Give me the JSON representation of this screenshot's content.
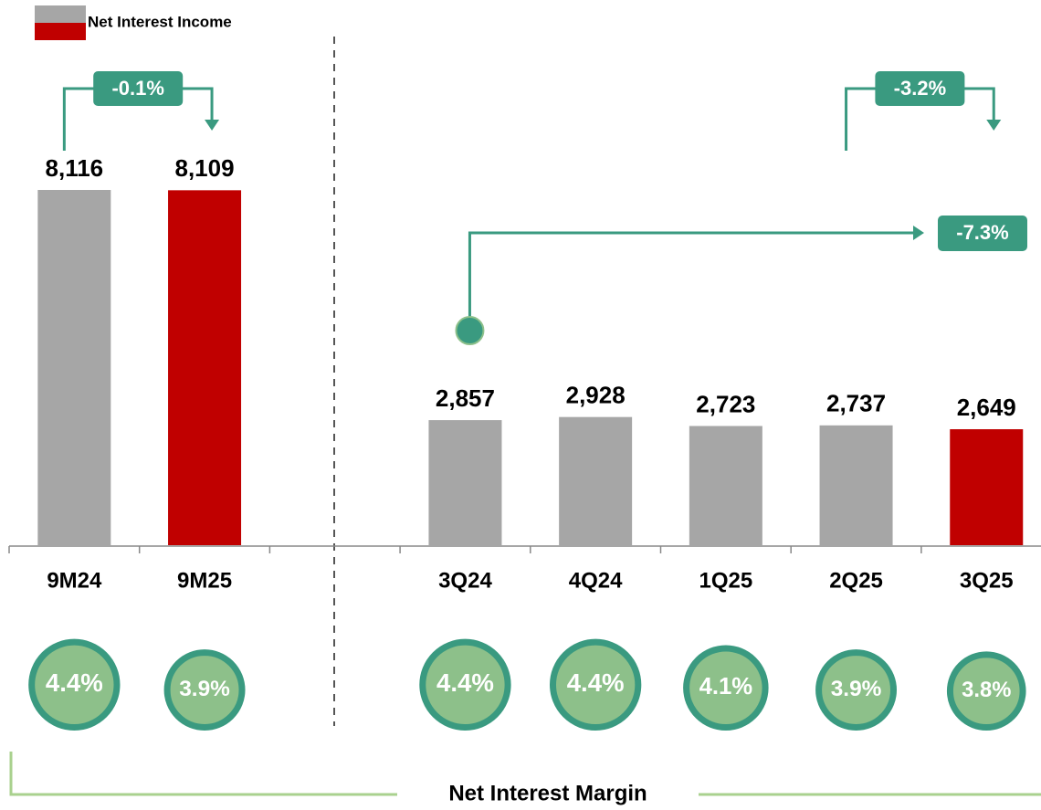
{
  "chart_data": {
    "type": "bar",
    "legend": {
      "label": "Net Interest Income",
      "colors": [
        "#a6a6a6",
        "#c00000"
      ]
    },
    "categories": [
      "9M24",
      "9M25",
      null,
      "3Q24",
      "4Q24",
      "1Q25",
      "2Q25",
      "3Q25"
    ],
    "values": [
      8116,
      8109,
      null,
      2857,
      2928,
      2723,
      2737,
      2649
    ],
    "value_labels": [
      "8,116",
      "8,109",
      null,
      "2,857",
      "2,928",
      "2,723",
      "2,737",
      "2,649"
    ],
    "colors": [
      "#a6a6a6",
      "#c00000",
      null,
      "#a6a6a6",
      "#a6a6a6",
      "#a6a6a6",
      "#a6a6a6",
      "#c00000"
    ],
    "margin": {
      "title": "Net Interest Margin",
      "values": [
        4.4,
        3.9,
        null,
        4.4,
        4.4,
        4.1,
        3.9,
        3.8
      ],
      "value_labels": [
        "4.4%",
        "3.9%",
        null,
        "4.4%",
        "4.4%",
        "4.1%",
        "3.9%",
        "3.8%"
      ],
      "fill": "#8dc08a",
      "stroke": "#3a9a80"
    },
    "annotations": [
      {
        "text": "-0.1%",
        "from": "9M24",
        "to": "9M25"
      },
      {
        "text": "-7.3%",
        "from": "3Q24",
        "to": "3Q25"
      },
      {
        "text": "-3.2%",
        "from": "2Q25",
        "to": "3Q25"
      }
    ],
    "annotation_color": "#3a9a80"
  }
}
